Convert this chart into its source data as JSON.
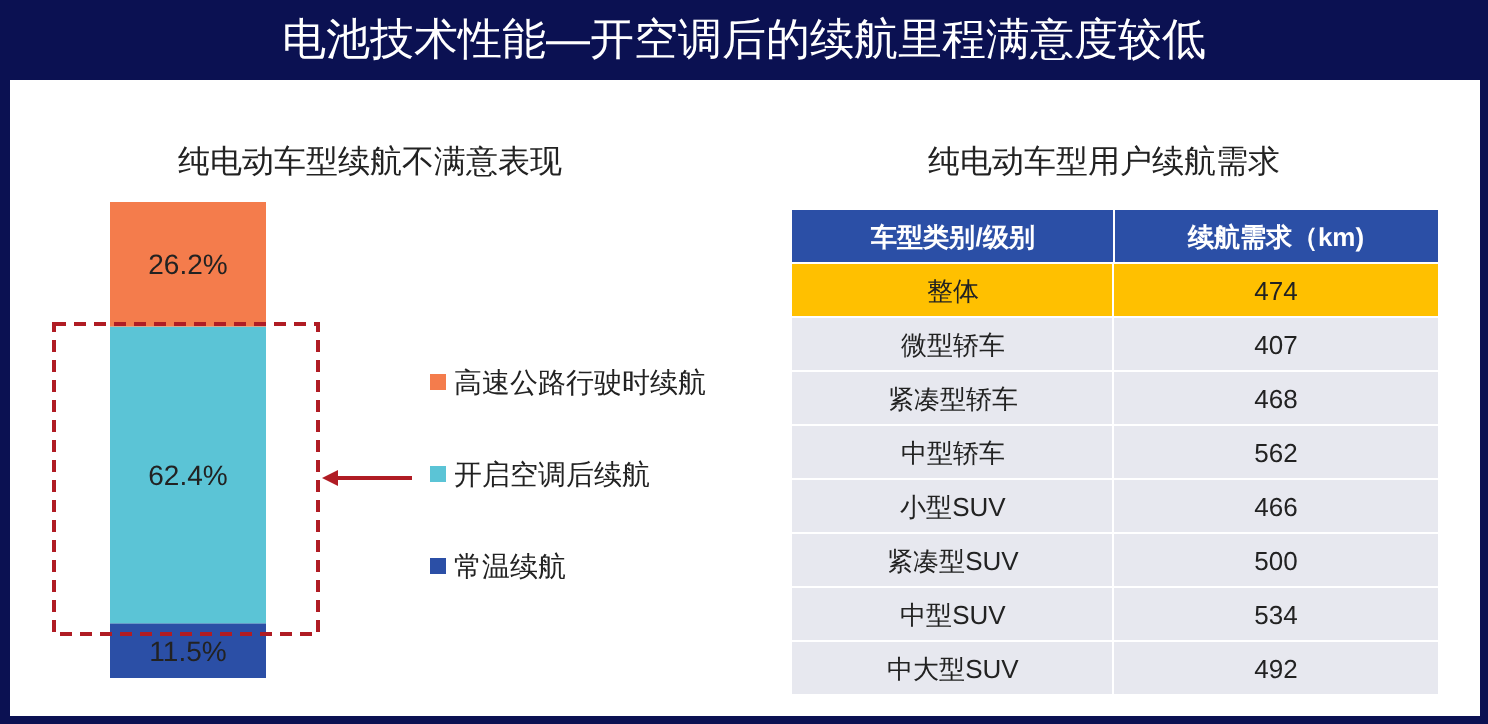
{
  "chart_data": [
    {
      "type": "bar",
      "stacked": true,
      "title": "电池技术性能—开空调后的续航里程满意度较低",
      "subtitle": "纯电动车型续航不满意表现",
      "categories": [
        null
      ],
      "legend": "right",
      "series": [
        {
          "name": "常温续航",
          "color": "#2b4fa6",
          "values": [
            11.5
          ],
          "value_labels": [
            "11.5%"
          ]
        },
        {
          "name": "开启空调后续航",
          "color": "#5bc4d6",
          "values": [
            62.4
          ],
          "value_labels": [
            "62.4%"
          ]
        },
        {
          "name": "高速公路行驶时续航",
          "color": "#f47c4c",
          "values": [
            26.2
          ],
          "value_labels": [
            "26.2%"
          ]
        }
      ]
    },
    {
      "type": "other",
      "title": "纯电动车型用户续航需求",
      "xlabel": "车型类别/级别",
      "ylabel": "续航需求（km)",
      "data_labels": true,
      "categories": [
        "整体",
        "微型轿车",
        "紧凑型轿车",
        "中型轿车",
        "小型SUV",
        "紧凑型SUV",
        "中型SUV",
        "中大型SUV"
      ],
      "values": [
        474,
        407,
        468,
        562,
        466,
        500,
        534,
        492
      ],
      "colors": [
        "#ffc000",
        "#e7e8ef",
        "#e7e8ef",
        "#e7e8ef",
        "#e7e8ef",
        "#e7e8ef",
        "#e7e8ef",
        "#e7e8ef"
      ]
    }
  ]
}
